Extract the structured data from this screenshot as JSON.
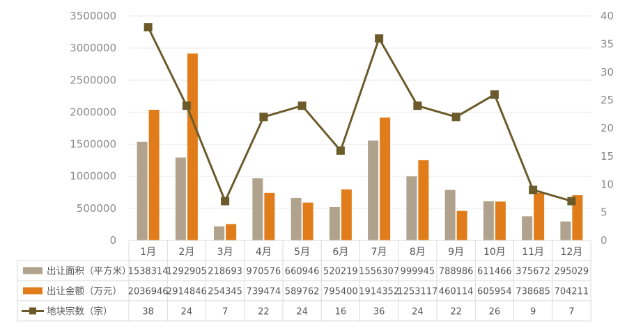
{
  "chart_data": {
    "type": "bar",
    "categories": [
      "1月",
      "2月",
      "3月",
      "4月",
      "5月",
      "6月",
      "7月",
      "8月",
      "9月",
      "10月",
      "11月",
      "12月"
    ],
    "series": [
      {
        "name": "出让面积（平方米）",
        "type": "bar",
        "axis": "left",
        "color": "#b0a28c",
        "values": [
          1538314,
          1292905,
          218693,
          970576,
          660946,
          520219,
          1556307,
          999945,
          788986,
          611466,
          375672,
          295029
        ]
      },
      {
        "name": "出让金额（万元）",
        "type": "bar",
        "axis": "left",
        "color": "#e07d1a",
        "values": [
          2036946,
          2914846,
          254345,
          739474,
          589762,
          795400,
          1914352,
          1253117,
          460114,
          605954,
          738685,
          704211
        ]
      },
      {
        "name": "地块宗数（宗）",
        "type": "line",
        "axis": "right",
        "color": "#6b5a2a",
        "values": [
          38,
          24,
          7,
          22,
          24,
          16,
          36,
          24,
          22,
          26,
          9,
          7
        ]
      }
    ],
    "left_axis": {
      "min": 0,
      "max": 3500000,
      "ticks": [
        "0",
        "500000",
        "1000000",
        "1500000",
        "2000000",
        "2500000",
        "3000000",
        "3500000"
      ]
    },
    "right_axis": {
      "min": 0,
      "max": 40,
      "ticks": [
        "0",
        "5",
        "10",
        "15",
        "20",
        "25",
        "30",
        "35",
        "40"
      ]
    },
    "grid": true,
    "legend": "data-table-below"
  }
}
